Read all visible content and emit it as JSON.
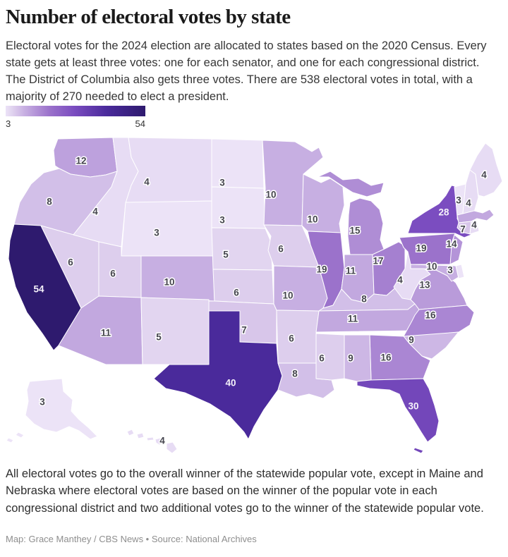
{
  "header": {
    "title": "Number of electoral votes by state",
    "description": "Electoral votes for the 2024 election are allocated to states based on the 2020 Census. Every state gets at least three votes: one for each senator, and one for each congressional district. The District of Columbia also gets three votes. There are 538 electoral votes in total, with a majority of 270 needed to elect a president."
  },
  "legend": {
    "min_label": "3",
    "max_label": "54"
  },
  "colors": {
    "label_dark": "#45454e",
    "label_light": "#f6f3fb",
    "state_border": "#ffffff",
    "scale": [
      {
        "v": 3,
        "c": "#ece3f7"
      },
      {
        "v": 6,
        "c": "#ddceed"
      },
      {
        "v": 10,
        "c": "#c7afe2"
      },
      {
        "v": 15,
        "c": "#af8dd5"
      },
      {
        "v": 19,
        "c": "#9b72cb"
      },
      {
        "v": 28,
        "c": "#7b4dc0"
      },
      {
        "v": 40,
        "c": "#4a2a9b"
      },
      {
        "v": 54,
        "c": "#2e1a6e"
      }
    ]
  },
  "chart_data": {
    "type": "heatmap",
    "subtype": "us-state-choropleth",
    "title": "Number of electoral votes by state",
    "value_label": "Electoral votes",
    "range": [
      3,
      54
    ],
    "legend_position": "top-left",
    "series": [
      {
        "abbr": "WA",
        "state": "Washington",
        "votes": 12,
        "label": "12",
        "label_style": "dark"
      },
      {
        "abbr": "OR",
        "state": "Oregon",
        "votes": 8,
        "label": "8",
        "label_style": "dark"
      },
      {
        "abbr": "CA",
        "state": "California",
        "votes": 54,
        "label": "54",
        "label_style": "light"
      },
      {
        "abbr": "NV",
        "state": "Nevada",
        "votes": 6,
        "label": "6",
        "label_style": "dark"
      },
      {
        "abbr": "ID",
        "state": "Idaho",
        "votes": 4,
        "label": "4",
        "label_style": "dark"
      },
      {
        "abbr": "MT",
        "state": "Montana",
        "votes": 4,
        "label": "4",
        "label_style": "dark"
      },
      {
        "abbr": "WY",
        "state": "Wyoming",
        "votes": 3,
        "label": "3",
        "label_style": "dark"
      },
      {
        "abbr": "UT",
        "state": "Utah",
        "votes": 6,
        "label": "6",
        "label_style": "dark"
      },
      {
        "abbr": "CO",
        "state": "Colorado",
        "votes": 10,
        "label": "10",
        "label_style": "dark"
      },
      {
        "abbr": "AZ",
        "state": "Arizona",
        "votes": 11,
        "label": "11",
        "label_style": "dark"
      },
      {
        "abbr": "NM",
        "state": "New Mexico",
        "votes": 5,
        "label": "5",
        "label_style": "dark"
      },
      {
        "abbr": "ND",
        "state": "North Dakota",
        "votes": 3,
        "label": "3",
        "label_style": "dark"
      },
      {
        "abbr": "SD",
        "state": "South Dakota",
        "votes": 3,
        "label": "3",
        "label_style": "dark"
      },
      {
        "abbr": "NE",
        "state": "Nebraska",
        "votes": 5,
        "label": "5",
        "label_style": "dark"
      },
      {
        "abbr": "KS",
        "state": "Kansas",
        "votes": 6,
        "label": "6",
        "label_style": "dark"
      },
      {
        "abbr": "OK",
        "state": "Oklahoma",
        "votes": 7,
        "label": "7",
        "label_style": "dark"
      },
      {
        "abbr": "TX",
        "state": "Texas",
        "votes": 40,
        "label": "40",
        "label_style": "light"
      },
      {
        "abbr": "MN",
        "state": "Minnesota",
        "votes": 10,
        "label": "10",
        "label_style": "dark"
      },
      {
        "abbr": "IA",
        "state": "Iowa",
        "votes": 6,
        "label": "6",
        "label_style": "dark"
      },
      {
        "abbr": "MO",
        "state": "Missouri",
        "votes": 10,
        "label": "10",
        "label_style": "dark"
      },
      {
        "abbr": "AR",
        "state": "Arkansas",
        "votes": 6,
        "label": "6",
        "label_style": "dark"
      },
      {
        "abbr": "LA",
        "state": "Louisiana",
        "votes": 8,
        "label": "8",
        "label_style": "dark"
      },
      {
        "abbr": "WI",
        "state": "Wisconsin",
        "votes": 10,
        "label": "10",
        "label_style": "dark"
      },
      {
        "abbr": "IL",
        "state": "Illinois",
        "votes": 19,
        "label": "19",
        "label_style": "dark"
      },
      {
        "abbr": "MS",
        "state": "Mississippi",
        "votes": 6,
        "label": "6",
        "label_style": "dark"
      },
      {
        "abbr": "MI",
        "state": "Michigan",
        "votes": 15,
        "label": "15",
        "label_style": "dark"
      },
      {
        "abbr": "IN",
        "state": "Indiana",
        "votes": 11,
        "label": "11",
        "label_style": "dark"
      },
      {
        "abbr": "OH",
        "state": "Ohio",
        "votes": 17,
        "label": "17",
        "label_style": "dark"
      },
      {
        "abbr": "KY",
        "state": "Kentucky",
        "votes": 8,
        "label": "8",
        "label_style": "dark"
      },
      {
        "abbr": "TN",
        "state": "Tennessee",
        "votes": 11,
        "label": "11",
        "label_style": "dark"
      },
      {
        "abbr": "AL",
        "state": "Alabama",
        "votes": 9,
        "label": "9",
        "label_style": "dark"
      },
      {
        "abbr": "GA",
        "state": "Georgia",
        "votes": 16,
        "label": "16",
        "label_style": "dark"
      },
      {
        "abbr": "FL",
        "state": "Florida",
        "votes": 30,
        "label": "30",
        "label_style": "light"
      },
      {
        "abbr": "SC",
        "state": "South Carolina",
        "votes": 9,
        "label": "9",
        "label_style": "dark"
      },
      {
        "abbr": "NC",
        "state": "North Carolina",
        "votes": 16,
        "label": "16",
        "label_style": "dark"
      },
      {
        "abbr": "VA",
        "state": "Virginia",
        "votes": 13,
        "label": "13",
        "label_style": "dark"
      },
      {
        "abbr": "WV",
        "state": "West Virginia",
        "votes": 4,
        "label": "4",
        "label_style": "dark"
      },
      {
        "abbr": "PA",
        "state": "Pennsylvania",
        "votes": 19,
        "label": "19",
        "label_style": "dark"
      },
      {
        "abbr": "NY",
        "state": "New York",
        "votes": 28,
        "label": "28",
        "label_style": "light"
      },
      {
        "abbr": "NJ",
        "state": "New Jersey",
        "votes": 14,
        "label": "14",
        "label_style": "dark"
      },
      {
        "abbr": "MD",
        "state": "Maryland",
        "votes": 10,
        "label": "10",
        "label_style": "dark"
      },
      {
        "abbr": "DE",
        "state": "Delaware",
        "votes": 3,
        "label": "3",
        "label_style": "dark"
      },
      {
        "abbr": "VT",
        "state": "Vermont",
        "votes": 3,
        "label": "3",
        "label_style": "dark"
      },
      {
        "abbr": "NH",
        "state": "New Hampshire",
        "votes": 4,
        "label": "4",
        "label_style": "dark"
      },
      {
        "abbr": "MA",
        "state": "Massachusetts",
        "votes": 11,
        "label": null,
        "label_style": "dark"
      },
      {
        "abbr": "CT",
        "state": "Connecticut",
        "votes": 7,
        "label": "7",
        "label_style": "dark"
      },
      {
        "abbr": "RI",
        "state": "Rhode Island",
        "votes": 4,
        "label": "4",
        "label_style": "dark"
      },
      {
        "abbr": "ME",
        "state": "Maine",
        "votes": 4,
        "label": "4",
        "label_style": "dark"
      },
      {
        "abbr": "AK",
        "state": "Alaska",
        "votes": 3,
        "label": "3",
        "label_style": "dark"
      },
      {
        "abbr": "HI",
        "state": "Hawaii",
        "votes": 4,
        "label": "4",
        "label_style": "dark"
      }
    ]
  },
  "footer": {
    "note": "All electoral votes go to the overall winner of the statewide popular vote, except in Maine and Nebraska where electoral votes are based on the winner of the popular vote in each congressional district and two additional votes go to the winner of the statewide popular vote.",
    "credit": "Map: Grace Manthey / CBS News • Source: National Archives"
  }
}
